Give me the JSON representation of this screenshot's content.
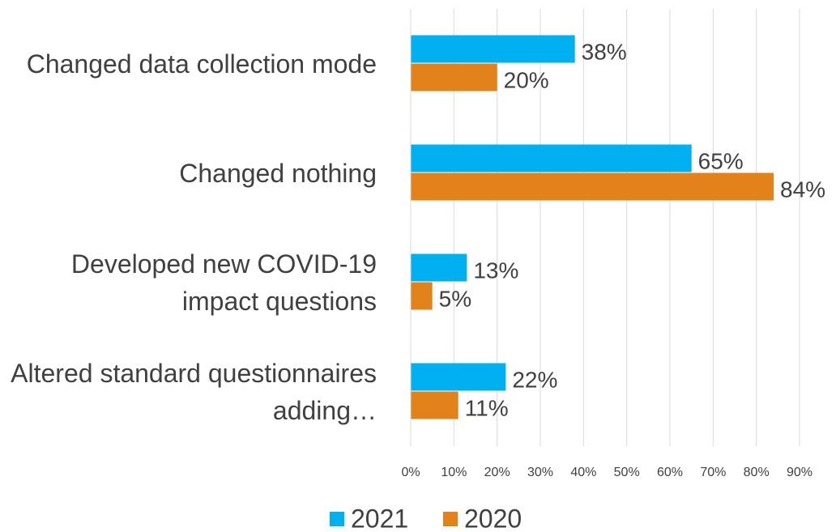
{
  "chart_data": {
    "type": "bar",
    "orientation": "horizontal",
    "categories": [
      "Changed data collection mode",
      "Changed nothing",
      "Developed new COVID-19 impact questions",
      "Altered standard questionnaires adding…"
    ],
    "series": [
      {
        "name": "2021",
        "color": "#00b0f0",
        "values": [
          38,
          65,
          13,
          22
        ],
        "value_labels": [
          "38%",
          "65%",
          "13%",
          "22%"
        ]
      },
      {
        "name": "2020",
        "color": "#e3821b",
        "values": [
          20,
          84,
          5,
          11
        ],
        "value_labels": [
          "20%",
          "84%",
          "5%",
          "11%"
        ]
      }
    ],
    "xlim": [
      0,
      90
    ],
    "xticks": [
      {
        "value": 0,
        "label": "0%"
      },
      {
        "value": 10,
        "label": "10%"
      },
      {
        "value": 20,
        "label": "20%"
      },
      {
        "value": 30,
        "label": "30%"
      },
      {
        "value": 40,
        "label": "40%"
      },
      {
        "value": 50,
        "label": "50%"
      },
      {
        "value": 60,
        "label": "60%"
      },
      {
        "value": 70,
        "label": "70%"
      },
      {
        "value": 80,
        "label": "80%"
      },
      {
        "value": 90,
        "label": "90%"
      }
    ],
    "grid": true,
    "legend": "bottom"
  }
}
